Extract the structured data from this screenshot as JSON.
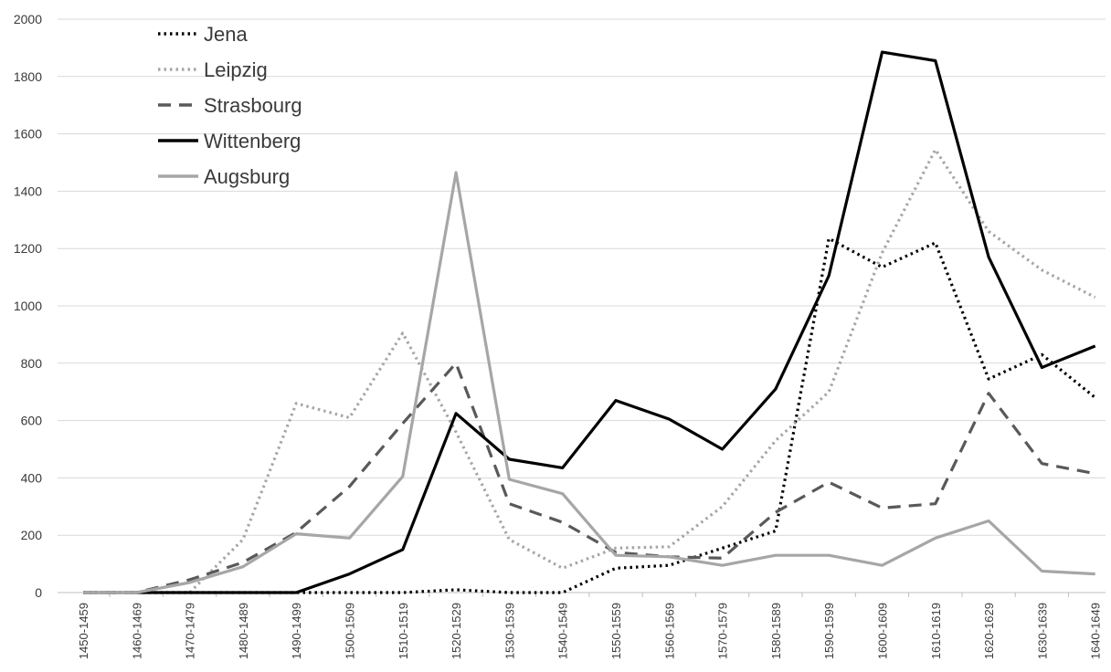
{
  "chart_data": {
    "type": "line",
    "title": "",
    "xlabel": "",
    "ylabel": "",
    "ylim": [
      0,
      2000
    ],
    "yticks": [
      0,
      200,
      400,
      600,
      800,
      1000,
      1200,
      1400,
      1600,
      1800,
      2000
    ],
    "grid": true,
    "legend_position": "top-left",
    "categories": [
      "1450-1459",
      "1460-1469",
      "1470-1479",
      "1480-1489",
      "1490-1499",
      "1500-1509",
      "1510-1519",
      "1520-1529",
      "1530-1539",
      "1540-1549",
      "1550-1559",
      "1560-1569",
      "1570-1579",
      "1580-1589",
      "1590-1599",
      "1600-1609",
      "1610-1619",
      "1620-1629",
      "1630-1639",
      "1640-1649"
    ],
    "series": [
      {
        "name": "Jena",
        "style": "dotted",
        "color": "#000000",
        "values": [
          0,
          0,
          0,
          0,
          0,
          0,
          0,
          10,
          0,
          0,
          85,
          95,
          155,
          215,
          1235,
          1135,
          1220,
          745,
          830,
          680
        ]
      },
      {
        "name": "Leipzig",
        "style": "dotted",
        "color": "#a6a6a6",
        "values": [
          0,
          0,
          0,
          185,
          660,
          610,
          905,
          560,
          185,
          85,
          155,
          160,
          300,
          530,
          700,
          1185,
          1545,
          1260,
          1125,
          1030
        ]
      },
      {
        "name": "Strasbourg",
        "style": "dashed",
        "color": "#595959",
        "values": [
          0,
          0,
          45,
          105,
          210,
          370,
          590,
          800,
          310,
          245,
          140,
          125,
          120,
          280,
          385,
          295,
          310,
          695,
          450,
          415
        ]
      },
      {
        "name": "Wittenberg",
        "style": "solid",
        "color": "#000000",
        "values": [
          0,
          0,
          0,
          0,
          0,
          65,
          150,
          625,
          465,
          435,
          670,
          605,
          500,
          710,
          1105,
          1885,
          1855,
          1170,
          785,
          860
        ]
      },
      {
        "name": "Augsburg",
        "style": "solid",
        "color": "#a6a6a6",
        "values": [
          0,
          0,
          35,
          90,
          205,
          190,
          405,
          1465,
          395,
          345,
          130,
          125,
          95,
          130,
          130,
          95,
          190,
          250,
          75,
          65
        ]
      }
    ]
  }
}
